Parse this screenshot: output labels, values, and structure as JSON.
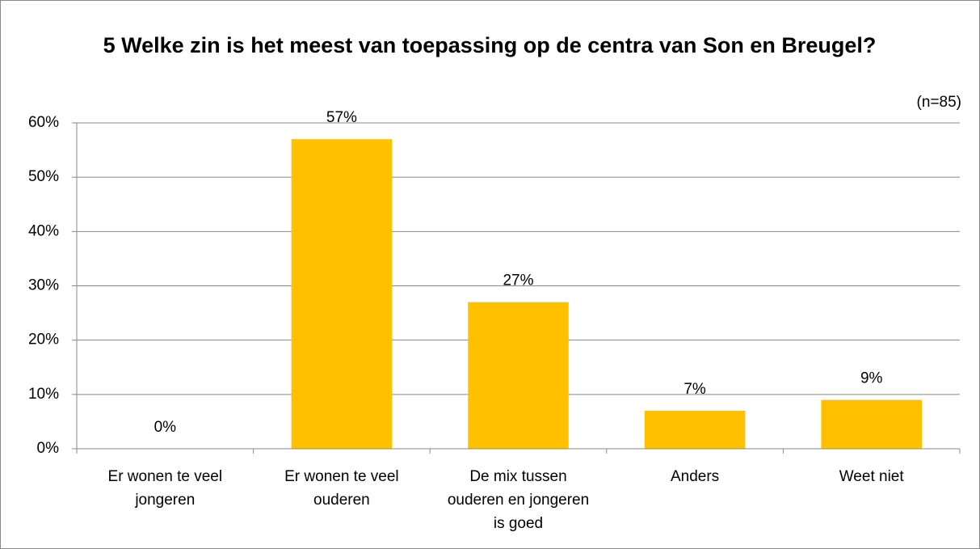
{
  "chart_data": {
    "type": "bar",
    "title": "5 Welke zin is het meest van toepassing op de centra van Son en Breugel?",
    "annotation": "(n=85)",
    "categories": [
      "Er wonen te veel jongeren",
      "Er wonen te veel ouderen",
      "De mix tussen ouderen en jongeren is goed",
      "Anders",
      "Weet niet"
    ],
    "values": [
      0,
      57,
      27,
      7,
      9
    ],
    "value_labels": [
      "0%",
      "57%",
      "27%",
      "7%",
      "9%"
    ],
    "color": "#ffc000",
    "ylim": [
      0,
      60
    ],
    "yticks": [
      {
        "value": 0,
        "label": "0%"
      },
      {
        "value": 10,
        "label": "10%"
      },
      {
        "value": 20,
        "label": "20%"
      },
      {
        "value": 30,
        "label": "30%"
      },
      {
        "value": 40,
        "label": "40%"
      },
      {
        "value": 50,
        "label": "50%"
      },
      {
        "value": 60,
        "label": "60%"
      }
    ],
    "grid": true
  }
}
